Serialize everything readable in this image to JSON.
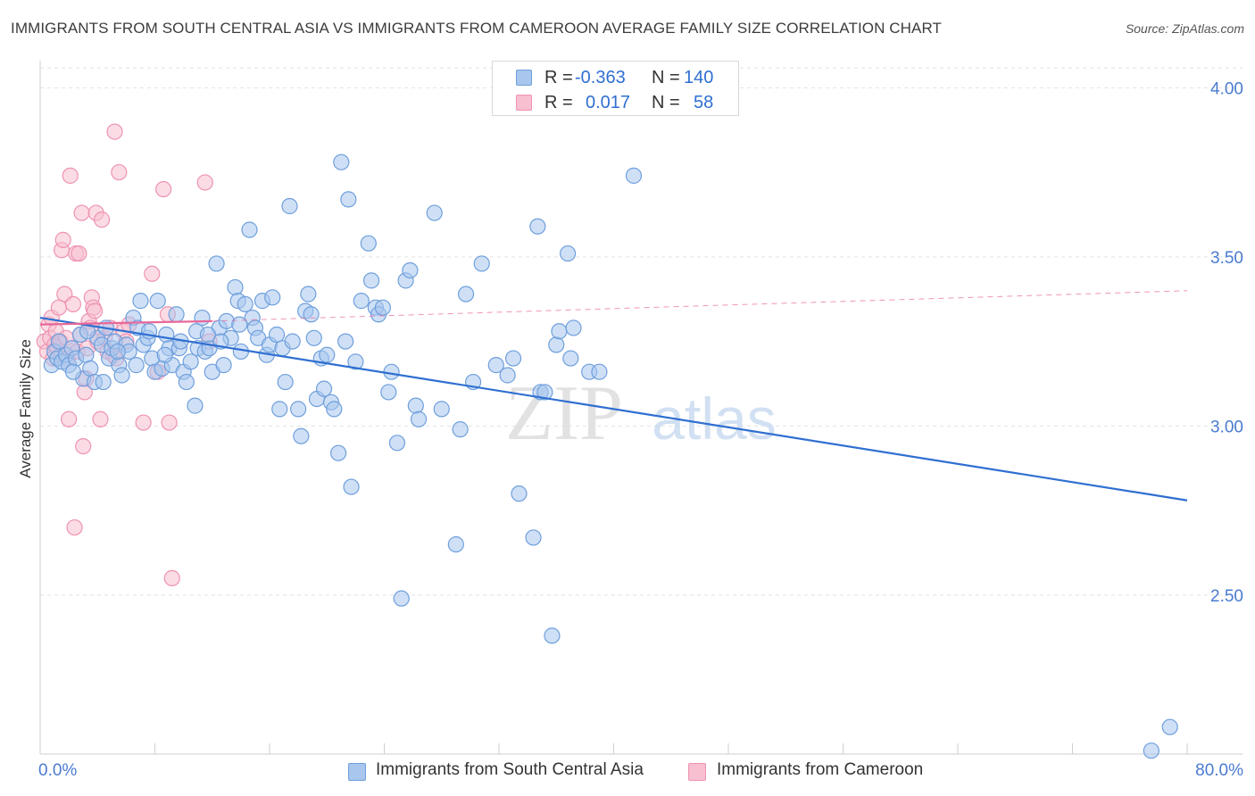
{
  "title": "IMMIGRANTS FROM SOUTH CENTRAL ASIA VS IMMIGRANTS FROM CAMEROON AVERAGE FAMILY SIZE CORRELATION CHART",
  "source": "Source: ZipAtlas.com",
  "watermark": {
    "zip": "ZIP",
    "atlas": "atlas"
  },
  "legend": {
    "rows": [
      {
        "r_label": "R =",
        "r_value": "-0.363",
        "n_label": "N =",
        "n_value": "140",
        "color": "#7aa6e0"
      },
      {
        "r_label": "R =",
        "r_value": "0.017",
        "n_label": "N =",
        "n_value": "58",
        "color": "#f29bb6"
      }
    ]
  },
  "bottom_legend": {
    "series1": "Immigrants from South Central Asia",
    "series2": "Immigrants from Cameroon"
  },
  "colors": {
    "blue_fill": "#a8c6ee",
    "blue_stroke": "#6f9fdc",
    "blue_line": "#2f6fd1",
    "pink_fill": "#f7bfd0",
    "pink_stroke": "#ee93b1",
    "pink_line": "#e8689a",
    "axis_text": "#4a7bd0",
    "grid": "#e2e2e2"
  },
  "chart_data": {
    "type": "scatter",
    "title": "IMMIGRANTS FROM SOUTH CENTRAL ASIA VS IMMIGRANTS FROM CAMEROON AVERAGE FAMILY SIZE CORRELATION CHART",
    "xlabel": "",
    "ylabel": "Average Family Size",
    "xlim": [
      0,
      80
    ],
    "ylim": [
      2.03,
      4.08
    ],
    "x_tick_labels": [
      "0.0%",
      "80.0%"
    ],
    "y_ticks": [
      2.5,
      3.0,
      3.5,
      4.0
    ],
    "y_tick_labels": [
      "2.50",
      "3.00",
      "3.50",
      "4.00"
    ],
    "grid": true,
    "series": [
      {
        "name": "Immigrants from South Central Asia",
        "R": -0.363,
        "N": 140,
        "trend": {
          "x": [
            0,
            80
          ],
          "y": [
            3.32,
            2.78
          ]
        },
        "points": [
          [
            0.8,
            3.18
          ],
          [
            1.0,
            3.22
          ],
          [
            1.2,
            3.2
          ],
          [
            1.5,
            3.19
          ],
          [
            1.8,
            3.21
          ],
          [
            2.0,
            3.18
          ],
          [
            2.2,
            3.23
          ],
          [
            2.5,
            3.2
          ],
          [
            2.8,
            3.27
          ],
          [
            3.0,
            3.14
          ],
          [
            3.2,
            3.21
          ],
          [
            3.5,
            3.17
          ],
          [
            3.8,
            3.13
          ],
          [
            4.0,
            3.26
          ],
          [
            4.3,
            3.24
          ],
          [
            4.6,
            3.29
          ],
          [
            4.8,
            3.2
          ],
          [
            5.0,
            3.23
          ],
          [
            5.2,
            3.25
          ],
          [
            5.5,
            3.18
          ],
          [
            5.7,
            3.15
          ],
          [
            6.0,
            3.24
          ],
          [
            6.2,
            3.22
          ],
          [
            6.5,
            3.32
          ],
          [
            6.8,
            3.29
          ],
          [
            7.0,
            3.37
          ],
          [
            7.2,
            3.24
          ],
          [
            7.5,
            3.26
          ],
          [
            7.8,
            3.2
          ],
          [
            8.0,
            3.16
          ],
          [
            8.2,
            3.37
          ],
          [
            8.5,
            3.17
          ],
          [
            8.8,
            3.27
          ],
          [
            9.0,
            3.23
          ],
          [
            9.2,
            3.18
          ],
          [
            9.5,
            3.33
          ],
          [
            9.7,
            3.23
          ],
          [
            10.0,
            3.16
          ],
          [
            10.2,
            3.13
          ],
          [
            10.5,
            3.19
          ],
          [
            10.8,
            3.06
          ],
          [
            11.0,
            3.23
          ],
          [
            11.3,
            3.32
          ],
          [
            11.5,
            3.22
          ],
          [
            11.8,
            3.23
          ],
          [
            12.0,
            3.16
          ],
          [
            12.3,
            3.48
          ],
          [
            12.5,
            3.29
          ],
          [
            12.8,
            3.18
          ],
          [
            13.0,
            3.31
          ],
          [
            13.3,
            3.26
          ],
          [
            13.6,
            3.41
          ],
          [
            13.8,
            3.37
          ],
          [
            14.0,
            3.22
          ],
          [
            14.3,
            3.36
          ],
          [
            14.6,
            3.58
          ],
          [
            14.8,
            3.32
          ],
          [
            15.0,
            3.29
          ],
          [
            15.2,
            3.26
          ],
          [
            15.5,
            3.37
          ],
          [
            15.8,
            3.21
          ],
          [
            16.0,
            3.24
          ],
          [
            16.2,
            3.38
          ],
          [
            16.5,
            3.27
          ],
          [
            16.7,
            3.05
          ],
          [
            16.9,
            3.23
          ],
          [
            17.1,
            3.13
          ],
          [
            17.4,
            3.65
          ],
          [
            17.6,
            3.25
          ],
          [
            18.0,
            3.05
          ],
          [
            18.2,
            2.97
          ],
          [
            18.5,
            3.34
          ],
          [
            18.7,
            3.39
          ],
          [
            18.9,
            3.33
          ],
          [
            19.1,
            3.26
          ],
          [
            19.3,
            3.08
          ],
          [
            19.6,
            3.2
          ],
          [
            19.8,
            3.11
          ],
          [
            20.0,
            3.21
          ],
          [
            20.3,
            3.07
          ],
          [
            20.5,
            3.05
          ],
          [
            20.8,
            2.92
          ],
          [
            21.0,
            3.78
          ],
          [
            21.3,
            3.25
          ],
          [
            21.5,
            3.67
          ],
          [
            21.7,
            2.82
          ],
          [
            22.0,
            3.19
          ],
          [
            22.4,
            3.37
          ],
          [
            22.9,
            3.54
          ],
          [
            23.1,
            3.43
          ],
          [
            23.4,
            3.35
          ],
          [
            23.6,
            3.33
          ],
          [
            23.9,
            3.35
          ],
          [
            24.3,
            3.1
          ],
          [
            24.5,
            3.16
          ],
          [
            24.9,
            2.95
          ],
          [
            25.2,
            2.49
          ],
          [
            25.5,
            3.43
          ],
          [
            25.8,
            3.46
          ],
          [
            26.2,
            3.06
          ],
          [
            26.4,
            3.02
          ],
          [
            27.5,
            3.63
          ],
          [
            28.0,
            3.05
          ],
          [
            29.0,
            2.65
          ],
          [
            29.3,
            2.99
          ],
          [
            29.7,
            3.39
          ],
          [
            30.2,
            3.13
          ],
          [
            30.8,
            3.48
          ],
          [
            31.8,
            3.18
          ],
          [
            32.6,
            3.15
          ],
          [
            33.0,
            3.2
          ],
          [
            33.4,
            2.8
          ],
          [
            34.4,
            2.67
          ],
          [
            34.7,
            3.59
          ],
          [
            34.9,
            3.1
          ],
          [
            35.2,
            3.1
          ],
          [
            35.7,
            2.38
          ],
          [
            36.0,
            3.24
          ],
          [
            36.2,
            3.28
          ],
          [
            36.8,
            3.51
          ],
          [
            37.0,
            3.2
          ],
          [
            37.2,
            3.29
          ],
          [
            38.3,
            3.16
          ],
          [
            39.0,
            3.16
          ],
          [
            41.4,
            3.74
          ],
          [
            77.5,
            2.04
          ],
          [
            78.8,
            2.11
          ],
          [
            1.3,
            3.25
          ],
          [
            2.3,
            3.16
          ],
          [
            3.3,
            3.28
          ],
          [
            4.4,
            3.13
          ],
          [
            5.4,
            3.22
          ],
          [
            6.7,
            3.18
          ],
          [
            7.6,
            3.28
          ],
          [
            8.7,
            3.21
          ],
          [
            9.8,
            3.25
          ],
          [
            10.9,
            3.28
          ],
          [
            11.7,
            3.27
          ],
          [
            12.6,
            3.25
          ],
          [
            13.9,
            3.3
          ]
        ]
      },
      {
        "name": "Immigrants from Cameroon",
        "R": 0.017,
        "N": 58,
        "trend": {
          "x": [
            0,
            12
          ],
          "y": [
            3.3,
            3.31
          ]
        },
        "trend_extension": {
          "x": [
            12,
            80
          ],
          "y": [
            3.31,
            3.4
          ]
        },
        "points": [
          [
            0.3,
            3.25
          ],
          [
            0.5,
            3.22
          ],
          [
            0.6,
            3.3
          ],
          [
            0.7,
            3.26
          ],
          [
            0.8,
            3.32
          ],
          [
            0.9,
            3.2
          ],
          [
            1.0,
            3.24
          ],
          [
            1.1,
            3.28
          ],
          [
            1.2,
            3.23
          ],
          [
            1.3,
            3.35
          ],
          [
            1.4,
            3.25
          ],
          [
            1.5,
            3.52
          ],
          [
            1.6,
            3.55
          ],
          [
            1.7,
            3.39
          ],
          [
            1.8,
            3.26
          ],
          [
            1.9,
            3.2
          ],
          [
            2.0,
            3.02
          ],
          [
            2.1,
            3.74
          ],
          [
            2.2,
            3.23
          ],
          [
            2.3,
            3.36
          ],
          [
            2.4,
            2.7
          ],
          [
            2.5,
            3.51
          ],
          [
            2.6,
            3.22
          ],
          [
            2.7,
            3.51
          ],
          [
            2.8,
            3.27
          ],
          [
            2.9,
            3.63
          ],
          [
            3.0,
            2.94
          ],
          [
            3.1,
            3.1
          ],
          [
            3.2,
            3.14
          ],
          [
            3.3,
            3.23
          ],
          [
            3.4,
            3.31
          ],
          [
            3.5,
            3.29
          ],
          [
            3.6,
            3.38
          ],
          [
            3.7,
            3.35
          ],
          [
            3.8,
            3.34
          ],
          [
            3.9,
            3.63
          ],
          [
            4.0,
            3.25
          ],
          [
            4.2,
            3.02
          ],
          [
            4.3,
            3.61
          ],
          [
            4.5,
            3.26
          ],
          [
            4.7,
            3.22
          ],
          [
            4.9,
            3.29
          ],
          [
            5.1,
            3.21
          ],
          [
            5.2,
            3.87
          ],
          [
            5.3,
            3.2
          ],
          [
            5.5,
            3.75
          ],
          [
            5.8,
            3.28
          ],
          [
            6.0,
            3.25
          ],
          [
            6.2,
            3.3
          ],
          [
            7.2,
            3.01
          ],
          [
            7.8,
            3.45
          ],
          [
            8.2,
            3.16
          ],
          [
            8.6,
            3.7
          ],
          [
            8.9,
            3.33
          ],
          [
            9.2,
            2.55
          ],
          [
            9.0,
            3.01
          ],
          [
            11.5,
            3.72
          ],
          [
            11.8,
            3.25
          ]
        ]
      }
    ]
  }
}
